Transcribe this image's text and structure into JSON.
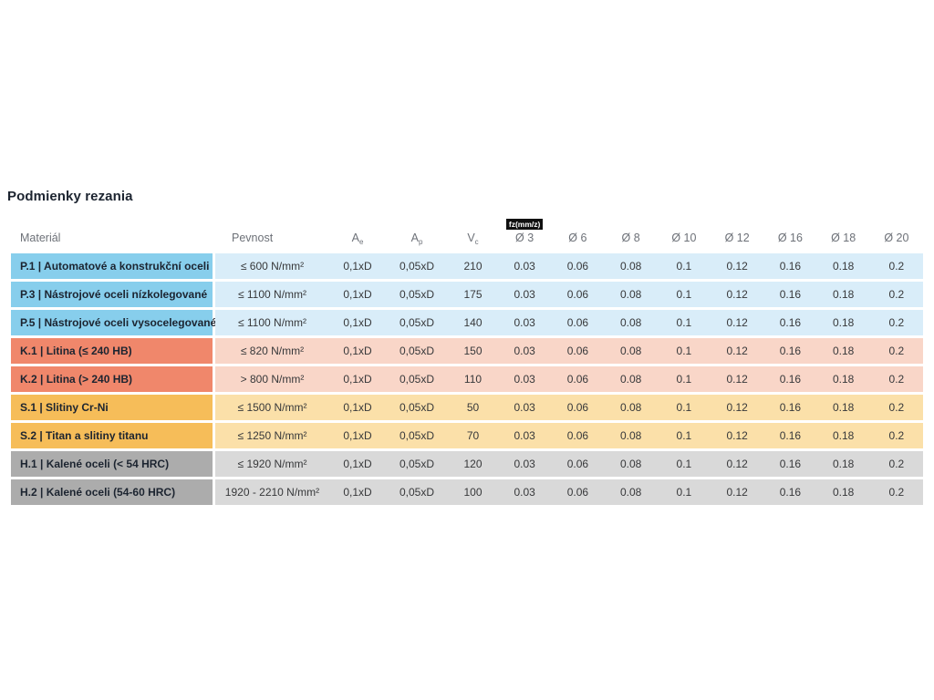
{
  "page": {
    "title": "Podmienky rezania"
  },
  "colors": {
    "blue_strong": "#87ceec",
    "blue_light": "#d9edf9",
    "salmon_strong": "#f0876b",
    "salmon_light": "#f9d6c8",
    "amber_strong": "#f6bd59",
    "amber_light": "#fbe0a9",
    "gray_strong": "#acacac",
    "gray_light": "#d9d9d9",
    "header_text": "#6d7178",
    "badge_bg": "#101010",
    "badge_text": "#ffffff"
  },
  "table": {
    "headers": {
      "material": "Materiál",
      "pevnost": "Pevnost",
      "ae": {
        "base": "A",
        "sub": "e"
      },
      "ap": {
        "base": "A",
        "sub": "p"
      },
      "vc": {
        "base": "V",
        "sub": "c"
      },
      "fz_badge": "fz(mm/z)",
      "diameters": [
        "Ø 3",
        "Ø 6",
        "Ø 8",
        "Ø 10",
        "Ø 12",
        "Ø 16",
        "Ø 18",
        "Ø 20"
      ]
    },
    "rows": [
      {
        "group": "P",
        "material": "P.1 | Automatové a konstrukční oceli",
        "pevnost": "≤ 600 N/mm²",
        "ae": "0,1xD",
        "ap": "0,05xD",
        "vc": "210",
        "fz": [
          "0.03",
          "0.06",
          "0.08",
          "0.1",
          "0.12",
          "0.16",
          "0.18",
          "0.2"
        ]
      },
      {
        "group": "P",
        "material": "P.3 | Nástrojové oceli nízkolegované",
        "pevnost": "≤ 1100 N/mm²",
        "ae": "0,1xD",
        "ap": "0,05xD",
        "vc": "175",
        "fz": [
          "0.03",
          "0.06",
          "0.08",
          "0.1",
          "0.12",
          "0.16",
          "0.18",
          "0.2"
        ]
      },
      {
        "group": "P",
        "material": "P.5 | Nástrojové oceli vysocelegované",
        "pevnost": "≤ 1100 N/mm²",
        "ae": "0,1xD",
        "ap": "0,05xD",
        "vc": "140",
        "fz": [
          "0.03",
          "0.06",
          "0.08",
          "0.1",
          "0.12",
          "0.16",
          "0.18",
          "0.2"
        ]
      },
      {
        "group": "K",
        "material": "K.1 | Litina (≤ 240 HB)",
        "pevnost": "≤ 820 N/mm²",
        "ae": "0,1xD",
        "ap": "0,05xD",
        "vc": "150",
        "fz": [
          "0.03",
          "0.06",
          "0.08",
          "0.1",
          "0.12",
          "0.16",
          "0.18",
          "0.2"
        ]
      },
      {
        "group": "K",
        "material": "K.2 | Litina (> 240 HB)",
        "pevnost": "> 800 N/mm²",
        "ae": "0,1xD",
        "ap": "0,05xD",
        "vc": "110",
        "fz": [
          "0.03",
          "0.06",
          "0.08",
          "0.1",
          "0.12",
          "0.16",
          "0.18",
          "0.2"
        ]
      },
      {
        "group": "S",
        "material": "S.1 | Slitiny Cr-Ni",
        "pevnost": "≤ 1500 N/mm²",
        "ae": "0,1xD",
        "ap": "0,05xD",
        "vc": "50",
        "fz": [
          "0.03",
          "0.06",
          "0.08",
          "0.1",
          "0.12",
          "0.16",
          "0.18",
          "0.2"
        ]
      },
      {
        "group": "S",
        "material": "S.2 | Titan a slitiny titanu",
        "pevnost": "≤ 1250 N/mm²",
        "ae": "0,1xD",
        "ap": "0,05xD",
        "vc": "70",
        "fz": [
          "0.03",
          "0.06",
          "0.08",
          "0.1",
          "0.12",
          "0.16",
          "0.18",
          "0.2"
        ]
      },
      {
        "group": "H",
        "material": "H.1 | Kalené oceli (< 54 HRC)",
        "pevnost": "≤ 1920 N/mm²",
        "ae": "0,1xD",
        "ap": "0,05xD",
        "vc": "120",
        "fz": [
          "0.03",
          "0.06",
          "0.08",
          "0.1",
          "0.12",
          "0.16",
          "0.18",
          "0.2"
        ]
      },
      {
        "group": "H",
        "material": "H.2 | Kalené oceli (54-60 HRC)",
        "pevnost": "1920 - 2210 N/mm²",
        "ae": "0,1xD",
        "ap": "0,05xD",
        "vc": "100",
        "fz": [
          "0.03",
          "0.06",
          "0.08",
          "0.1",
          "0.12",
          "0.16",
          "0.18",
          "0.2"
        ]
      }
    ]
  }
}
